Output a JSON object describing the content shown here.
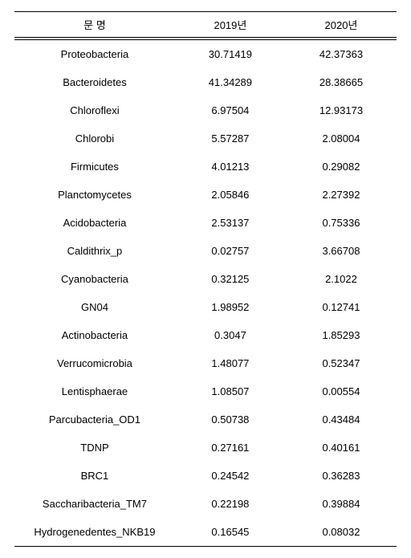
{
  "table": {
    "type": "table",
    "background_color": "#ffffff",
    "text_color": "#000000",
    "font_size_pt": 10,
    "border_color": "#000000",
    "columns": [
      {
        "label": "문 명",
        "align": "center",
        "width_pct": 42
      },
      {
        "label": "2019년",
        "align": "center",
        "width_pct": 29
      },
      {
        "label": "2020년",
        "align": "center",
        "width_pct": 29
      }
    ],
    "rows": [
      {
        "name": "Proteobacteria",
        "y2019": "30.71419",
        "y2020": "42.37363"
      },
      {
        "name": "Bacteroidetes",
        "y2019": "41.34289",
        "y2020": "28.38665"
      },
      {
        "name": "Chloroflexi",
        "y2019": "6.97504",
        "y2020": "12.93173"
      },
      {
        "name": "Chlorobi",
        "y2019": "5.57287",
        "y2020": "2.08004"
      },
      {
        "name": "Firmicutes",
        "y2019": "4.01213",
        "y2020": "0.29082"
      },
      {
        "name": "Planctomycetes",
        "y2019": "2.05846",
        "y2020": "2.27392"
      },
      {
        "name": "Acidobacteria",
        "y2019": "2.53137",
        "y2020": "0.75336"
      },
      {
        "name": "Caldithrix_p",
        "y2019": "0.02757",
        "y2020": "3.66708"
      },
      {
        "name": "Cyanobacteria",
        "y2019": "0.32125",
        "y2020": "2.1022"
      },
      {
        "name": "GN04",
        "y2019": "1.98952",
        "y2020": "0.12741"
      },
      {
        "name": "Actinobacteria",
        "y2019": "0.3047",
        "y2020": "1.85293"
      },
      {
        "name": "Verrucomicrobia",
        "y2019": "1.48077",
        "y2020": "0.52347"
      },
      {
        "name": "Lentisphaerae",
        "y2019": "1.08507",
        "y2020": "0.00554"
      },
      {
        "name": "Parcubacteria_OD1",
        "y2019": "0.50738",
        "y2020": "0.43484"
      },
      {
        "name": "TDNP",
        "y2019": "0.27161",
        "y2020": "0.40161"
      },
      {
        "name": "BRC1",
        "y2019": "0.24542",
        "y2020": "0.36283"
      },
      {
        "name": "Saccharibacteria_TM7",
        "y2019": "0.22198",
        "y2020": "0.39884"
      },
      {
        "name": "Hydrogenedentes_NKB19",
        "y2019": "0.16545",
        "y2020": "0.08032"
      }
    ]
  }
}
